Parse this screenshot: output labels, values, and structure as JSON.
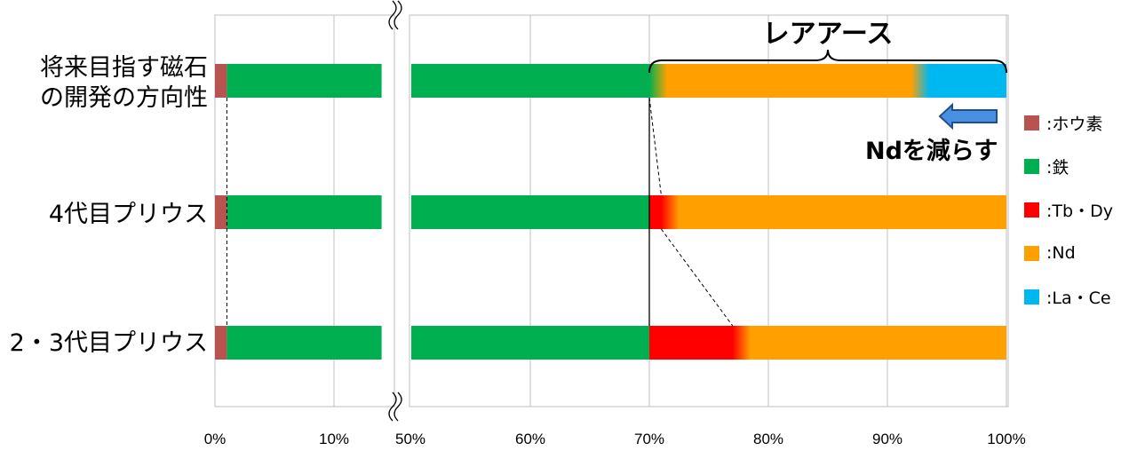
{
  "chart_data": {
    "type": "bar",
    "orientation": "horizontal",
    "stacked": true,
    "axis_break": {
      "from": 0.14,
      "to": 0.5
    },
    "xlim": [
      0,
      1
    ],
    "x_ticks": [
      "0%",
      "10%",
      "50%",
      "60%",
      "70%",
      "80%",
      "90%",
      "100%"
    ],
    "categories": [
      "将来目指す磁石の開発の方向性",
      "4代目プリウス",
      "2・3代目プリウス"
    ],
    "category_lines": [
      [
        "将来目指す磁石",
        "の開発の方向性"
      ],
      [
        "4代目プリウス"
      ],
      [
        "2・3代目プリウス"
      ]
    ],
    "series": [
      {
        "name": ":ホウ素",
        "color": "#b85450",
        "values": [
          0.01,
          0.01,
          0.01
        ]
      },
      {
        "name": ":鉄",
        "color": "#00b050",
        "values": [
          0.69,
          0.69,
          0.69
        ]
      },
      {
        "name": ":Tb・Dy",
        "color": "#ff0000",
        "values": [
          0.0,
          0.01,
          0.07
        ]
      },
      {
        "name": ":Nd",
        "color": "#ffa000",
        "values": [
          0.22,
          0.29,
          0.23
        ]
      },
      {
        "name": ":La・Ce",
        "color": "#00b8f0",
        "values": [
          0.08,
          0.0,
          0.0
        ]
      }
    ],
    "annotations": {
      "rare_earth": "レアアース",
      "reduce_nd": "Ndを減らす"
    },
    "grid": true,
    "legend_position": "right"
  }
}
